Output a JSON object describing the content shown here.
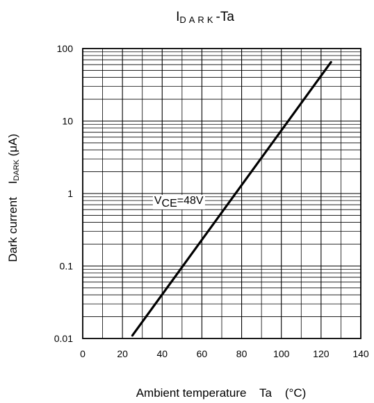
{
  "chart_data": {
    "type": "line",
    "title": {
      "main": "I",
      "subscript": "DARK",
      "suffix": "-Ta"
    },
    "xlabel": "Ambient temperature    Ta    (°C)",
    "ylabel": {
      "prefix": "Dark current    I",
      "subscript": "DARK",
      "suffix": " (μA)"
    },
    "x_ticks": [
      0,
      20,
      40,
      60,
      80,
      100,
      120,
      140
    ],
    "x_tick_labels": [
      "0",
      "20",
      "40",
      "60",
      "80",
      "100",
      "120",
      "140"
    ],
    "y_ticks": [
      0.01,
      0.1,
      1,
      10,
      100
    ],
    "y_tick_labels": [
      "0.01",
      "0.1",
      "1",
      "10",
      "100"
    ],
    "xlim": [
      0,
      140
    ],
    "ylim": [
      0.01,
      100
    ],
    "y_scale": "log",
    "grid": true,
    "annotation": {
      "main": "V",
      "subscript": "CE",
      "suffix": "=48V"
    },
    "series": [
      {
        "x": [
          25,
          125
        ],
        "y": [
          0.011,
          65
        ],
        "color": "#000000"
      }
    ]
  }
}
